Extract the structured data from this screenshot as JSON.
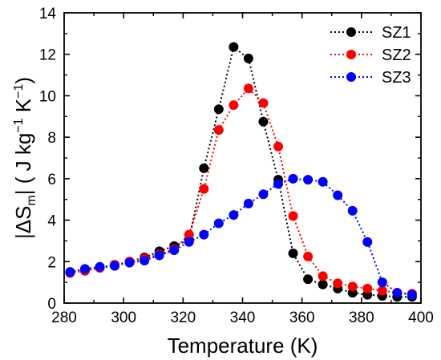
{
  "chart_data": {
    "type": "scatter",
    "xlabel": "Temperature (K)",
    "ylabel": {
      "prefix": "|ΔS",
      "sub": "m",
      "mid": "| ( J  kg",
      "sup1": "−1",
      "mid2": " K",
      "sup2": "−1",
      "end": ")"
    },
    "xlim": [
      280,
      400
    ],
    "ylim": [
      0,
      14
    ],
    "xticks": [
      "280",
      "300",
      "320",
      "340",
      "360",
      "380",
      "400"
    ],
    "yticks": [
      "0",
      "2",
      "4",
      "6",
      "8",
      "10",
      "12",
      "14"
    ],
    "legend_position": "top-right",
    "line_style": "dotted",
    "series": [
      {
        "name": "SZ1",
        "color": "#000000",
        "x": [
          282,
          287,
          292,
          297,
          302,
          307,
          312,
          317,
          322,
          327,
          332,
          337,
          342,
          347,
          352,
          357,
          362,
          367,
          372,
          377,
          382,
          387,
          392,
          397
        ],
        "y": [
          1.5,
          1.6,
          1.7,
          1.8,
          2.0,
          2.2,
          2.5,
          2.75,
          3.05,
          6.5,
          9.35,
          12.35,
          11.8,
          8.75,
          5.95,
          2.4,
          1.15,
          0.9,
          0.7,
          0.5,
          0.4,
          0.35,
          0.3,
          0.3
        ]
      },
      {
        "name": "SZ2",
        "color": "#ff0000",
        "x": [
          282,
          287,
          292,
          297,
          302,
          307,
          312,
          317,
          322,
          327,
          332,
          337,
          342,
          347,
          352,
          357,
          362,
          367,
          372,
          377,
          382,
          387,
          392,
          397
        ],
        "y": [
          1.45,
          1.55,
          1.7,
          1.85,
          2.0,
          2.15,
          2.35,
          2.6,
          3.3,
          5.5,
          8.35,
          9.55,
          10.35,
          9.65,
          7.55,
          4.2,
          2.25,
          1.3,
          0.95,
          0.8,
          0.7,
          0.6,
          0.5,
          0.45
        ]
      },
      {
        "name": "SZ3",
        "color": "#0000ff",
        "x": [
          282,
          287,
          292,
          297,
          302,
          307,
          312,
          317,
          322,
          327,
          332,
          337,
          342,
          347,
          352,
          357,
          362,
          367,
          372,
          377,
          382,
          387,
          392,
          397
        ],
        "y": [
          1.5,
          1.65,
          1.75,
          1.8,
          1.95,
          2.05,
          2.3,
          2.55,
          2.95,
          3.3,
          3.85,
          4.25,
          4.8,
          5.25,
          5.75,
          6.0,
          5.95,
          5.85,
          5.2,
          4.45,
          2.95,
          1.0,
          0.5,
          0.4
        ]
      }
    ]
  }
}
